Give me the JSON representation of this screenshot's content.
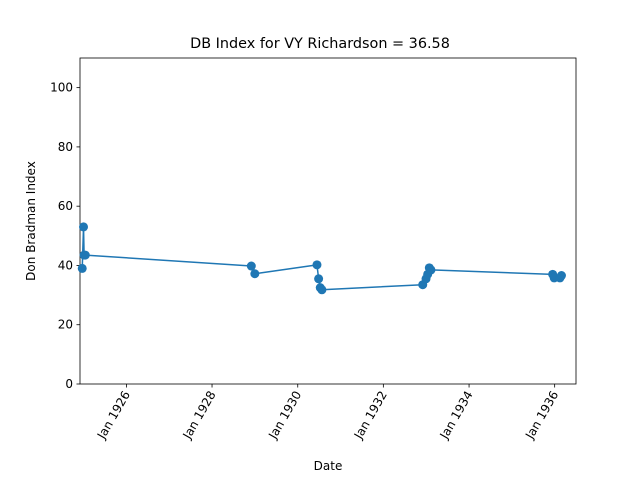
{
  "chart_data": {
    "type": "line",
    "title": "DB Index for VY Richardson = 36.58",
    "xlabel": "Date",
    "ylabel": "Don Bradman Index",
    "ylim": [
      0,
      110
    ],
    "xlim": [
      "1924-12-01",
      "1936-07-01"
    ],
    "yticks": [
      0,
      20,
      40,
      60,
      80,
      100
    ],
    "xticks": [
      {
        "date": "1926-01-01",
        "label": "Jan 1926"
      },
      {
        "date": "1928-01-01",
        "label": "Jan 1928"
      },
      {
        "date": "1930-01-01",
        "label": "Jan 1930"
      },
      {
        "date": "1932-01-01",
        "label": "Jan 1932"
      },
      {
        "date": "1934-01-01",
        "label": "Jan 1934"
      },
      {
        "date": "1936-01-01",
        "label": "Jan 1936"
      }
    ],
    "grid": false,
    "series": [
      {
        "color": "#1f77b4",
        "marker": "circle",
        "points": [
          {
            "x": "1924-12-20",
            "y": 39.0
          },
          {
            "x": "1924-12-31",
            "y": 53.0
          },
          {
            "x": "1925-01-05",
            "y": 43.5
          },
          {
            "x": "1925-01-15",
            "y": 43.5
          },
          {
            "x": "1928-12-01",
            "y": 39.8
          },
          {
            "x": "1928-12-31",
            "y": 37.2
          },
          {
            "x": "1930-06-14",
            "y": 40.2
          },
          {
            "x": "1930-06-28",
            "y": 35.5
          },
          {
            "x": "1930-07-12",
            "y": 32.5
          },
          {
            "x": "1930-07-26",
            "y": 31.8
          },
          {
            "x": "1932-12-02",
            "y": 33.5
          },
          {
            "x": "1932-12-30",
            "y": 35.5
          },
          {
            "x": "1933-01-13",
            "y": 37.0
          },
          {
            "x": "1933-01-27",
            "y": 39.2
          },
          {
            "x": "1933-02-10",
            "y": 38.5
          },
          {
            "x": "1935-12-15",
            "y": 37.0
          },
          {
            "x": "1935-12-28",
            "y": 35.8
          },
          {
            "x": "1936-02-15",
            "y": 35.8
          },
          {
            "x": "1936-02-28",
            "y": 36.6
          }
        ]
      }
    ]
  },
  "colors": {
    "series": "#1f77b4",
    "axes": "#000000",
    "background": "#ffffff"
  }
}
